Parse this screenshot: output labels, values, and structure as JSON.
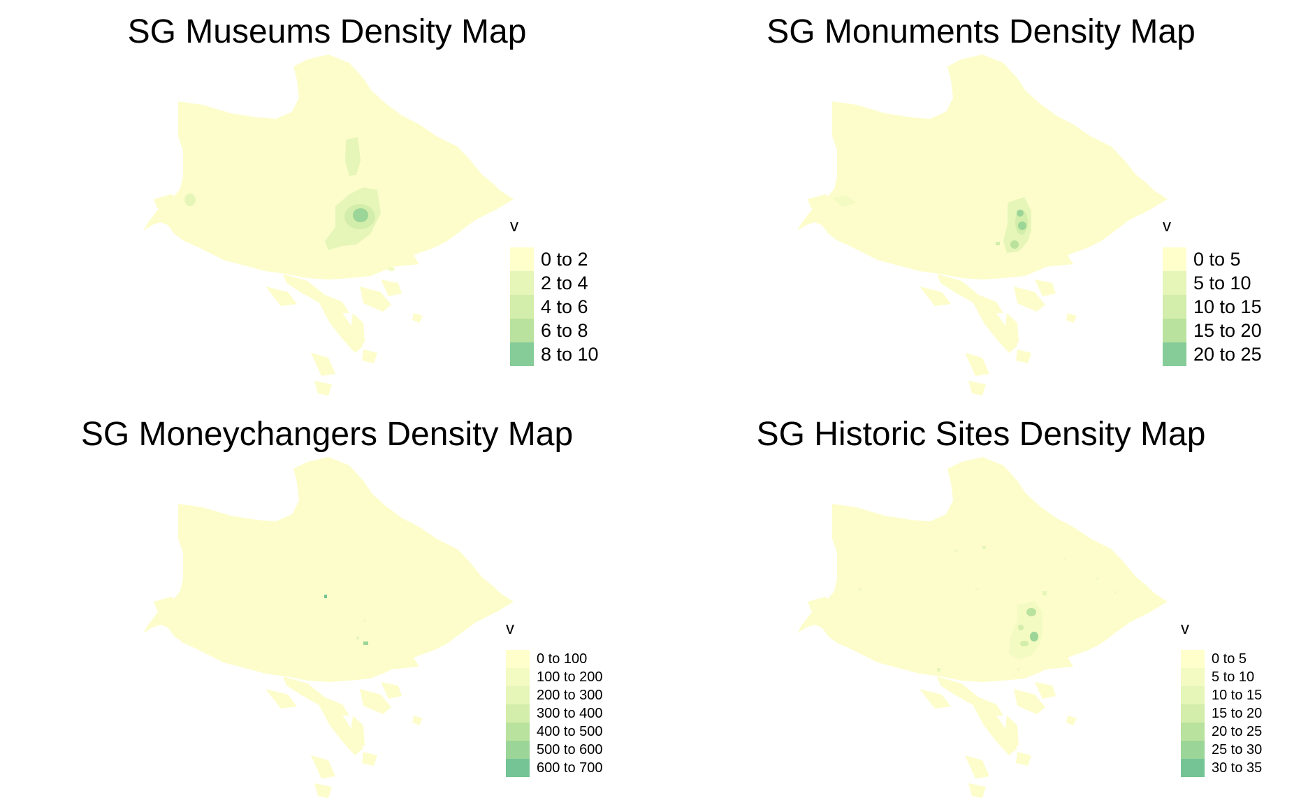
{
  "palette": [
    "#ffffcc",
    "#f3fac2",
    "#e6f5b8",
    "#d3edaa",
    "#b9e29e",
    "#9bd597",
    "#74c495"
  ],
  "panels": [
    {
      "id": "museums",
      "title": "SG Museums Density Map",
      "legend_title": "v",
      "legend": [
        "0 to 2",
        "2 to 4",
        "4 to 6",
        "6 to 8",
        "8 to 10"
      ],
      "legend_colors": [
        "#ffffcc",
        "#e6f5b8",
        "#d3edaa",
        "#b9e29e",
        "#86cc98"
      ]
    },
    {
      "id": "monuments",
      "title": "SG Monuments Density Map",
      "legend_title": "v",
      "legend": [
        "0 to 5",
        "5 to 10",
        "10 to 15",
        "15 to 20",
        "20 to 25"
      ],
      "legend_colors": [
        "#ffffcc",
        "#e6f5b8",
        "#d3edaa",
        "#b9e29e",
        "#86cc98"
      ]
    },
    {
      "id": "moneychangers",
      "title": "SG Moneychangers Density Map",
      "legend_title": "v",
      "legend": [
        "0 to 100",
        "100 to 200",
        "200 to 300",
        "300 to 400",
        "400 to 500",
        "500 to 600",
        "600 to 700"
      ],
      "legend_colors": [
        "#ffffcc",
        "#f3fac2",
        "#e6f5b8",
        "#d3edaa",
        "#b9e29e",
        "#9bd597",
        "#74c495"
      ]
    },
    {
      "id": "historic-sites",
      "title": "SG Historic Sites Density Map",
      "legend_title": "v",
      "legend": [
        "0 to 5",
        "5 to 10",
        "10 to 15",
        "15 to 20",
        "20 to 25",
        "25 to 30",
        "30 to 35"
      ],
      "legend_colors": [
        "#ffffcc",
        "#f3fac2",
        "#e6f5b8",
        "#d3edaa",
        "#b9e29e",
        "#9bd597",
        "#74c495"
      ]
    }
  ]
}
